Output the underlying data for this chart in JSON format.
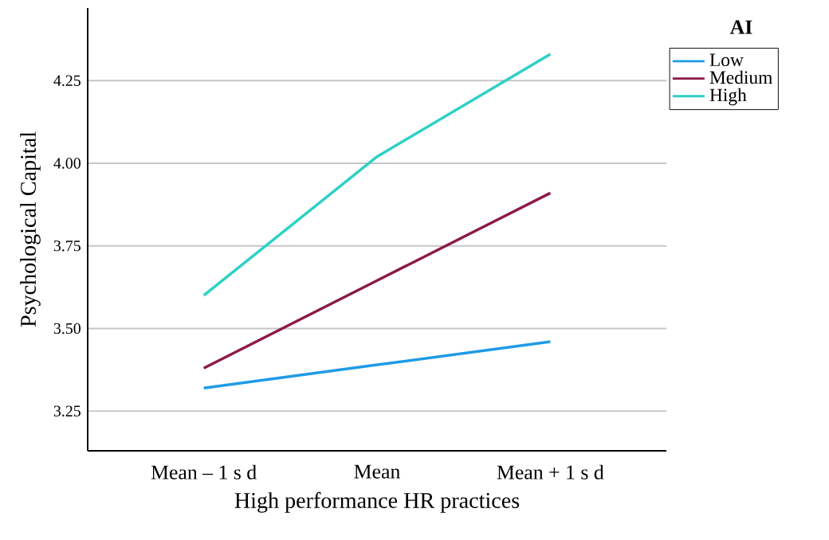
{
  "chart_data": {
    "type": "line",
    "xlabel": "High performance HR practices",
    "ylabel": "Psychological Capital",
    "legend_title": "AI",
    "categories": [
      "Mean – 1 s d",
      "Mean",
      "Mean + 1 s d"
    ],
    "series": [
      {
        "name": "Low",
        "color": "#1f9be6",
        "values": [
          3.32,
          3.39,
          3.46
        ]
      },
      {
        "name": "Medium",
        "color": "#8b1a4a",
        "values": [
          3.38,
          3.645,
          3.91
        ]
      },
      {
        "name": "High",
        "color": "#2fd0c6",
        "values": [
          3.6,
          4.02,
          4.33
        ]
      }
    ],
    "ylim": [
      3.13,
      4.47
    ],
    "yticks": [
      3.25,
      {
        "value": 3.5,
        "label": "3.50"
      },
      3.75,
      {
        "value": 4.0,
        "label": "4.00"
      },
      4.25
    ],
    "grid": "y",
    "legend": "top right",
    "marker": "none",
    "line_style": "solid"
  }
}
